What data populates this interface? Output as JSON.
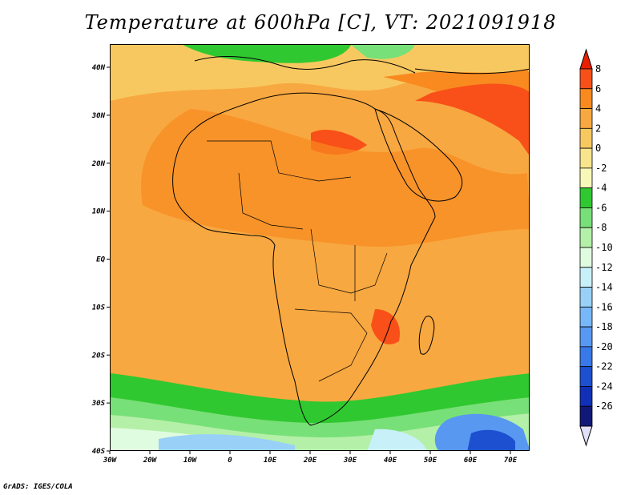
{
  "title": "Temperature at 600hPa [C], VT: 2021091918",
  "credit": "GrADS: IGES/COLA",
  "map": {
    "lat_labels": [
      "40N",
      "30N",
      "20N",
      "10N",
      "EQ",
      "10S",
      "20S",
      "30S",
      "40S"
    ],
    "lon_labels": [
      "30W",
      "20W",
      "10W",
      "0",
      "10E",
      "20E",
      "30E",
      "40E",
      "50E",
      "60E",
      "70E"
    ]
  },
  "colorbar": {
    "labels": [
      "8",
      "6",
      "4",
      "2",
      "0",
      "-2",
      "-4",
      "-6",
      "-8",
      "-10",
      "-12",
      "-14",
      "-16",
      "-18",
      "-20",
      "-22",
      "-24",
      "-26"
    ],
    "colors": [
      "#e82000",
      "#f85018",
      "#f88a20",
      "#f8a840",
      "#f8c860",
      "#f8e48c",
      "#f8f8b8",
      "#30c830",
      "#78e078",
      "#b4f0a8",
      "#e0fce0",
      "#c8f0f8",
      "#98d0f8",
      "#78b8f8",
      "#5898f0",
      "#3878e8",
      "#1c50d0",
      "#1030b8",
      "#101878",
      "#e0e0f8"
    ]
  }
}
